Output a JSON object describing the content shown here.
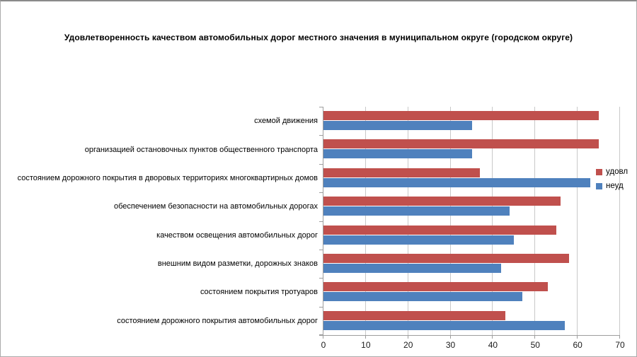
{
  "chart_data": {
    "type": "bar",
    "orientation": "horizontal",
    "title": "Удовлетворенность качеством автомобильных дорог местного значения в муниципальном округе (городском округе)",
    "categories": [
      "схемой движения",
      "организацией остановочных пунктов общественного транспорта",
      "состоянием дорожного покрытия в дворовых территориях многоквартирных домов",
      "обеспечением безопасности на автомобильных дорогах",
      "качеством освещения автомобильных дорог",
      "внешним видом разметки, дорожных знаков",
      "состоянием покрытия тротуаров",
      "состоянием дорожного покрытия автомобильных дорог"
    ],
    "series": [
      {
        "name": "удовл",
        "color": "#c0504d",
        "values": [
          65,
          65,
          37,
          56,
          55,
          58,
          53,
          43
        ]
      },
      {
        "name": "неуд",
        "color": "#4f81bd",
        "values": [
          35,
          35,
          63,
          44,
          45,
          42,
          47,
          57
        ]
      }
    ],
    "xlabel": "",
    "ylabel": "",
    "xlim": [
      0,
      70
    ],
    "x_ticks": [
      0,
      10,
      20,
      30,
      40,
      50,
      60,
      70
    ],
    "grid": "vertical",
    "legend_position": "right",
    "colors": {
      "background": "#ffffff",
      "grid_color": "#c9c9c9",
      "axis_color": "#9d9d9d",
      "text_color": "#000000",
      "frame_border": "#ababab"
    }
  }
}
